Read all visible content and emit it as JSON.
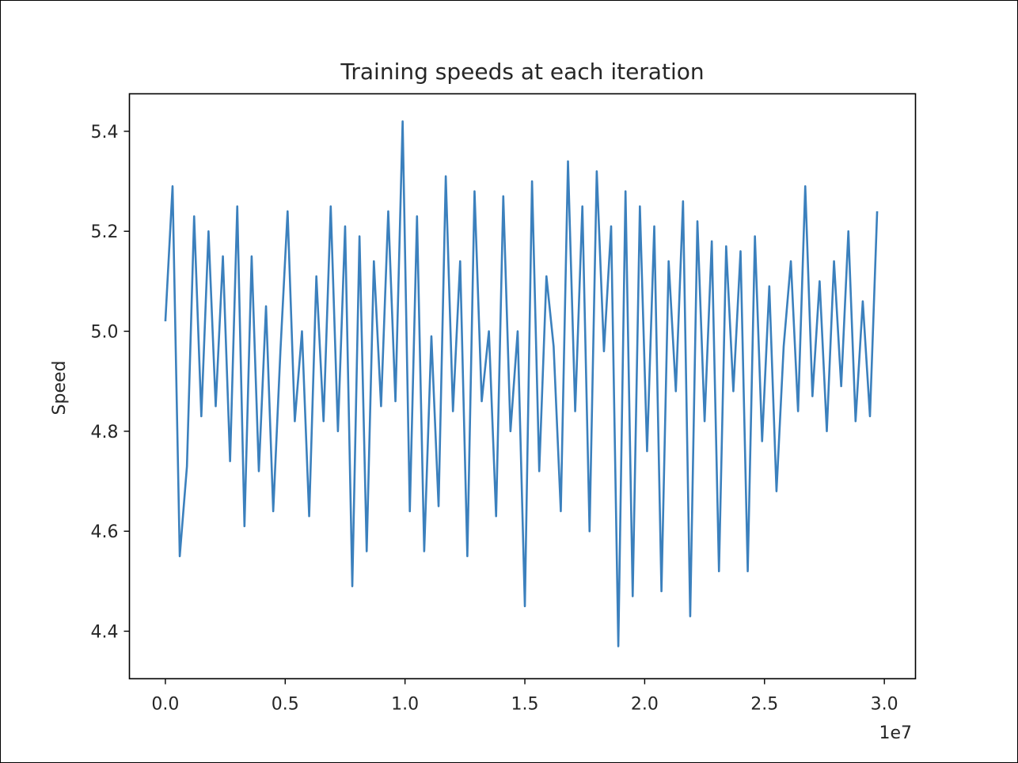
{
  "chart_data": {
    "type": "line",
    "title": "Training speeds at each iteration",
    "xlabel": "",
    "ylabel": "Speed",
    "x_offset_label": "1e7",
    "xlim": [
      -0.15,
      3.13
    ],
    "ylim": [
      4.305,
      5.475
    ],
    "x_ticks": [
      {
        "value": 0.0,
        "label": "0.0"
      },
      {
        "value": 0.5,
        "label": "0.5"
      },
      {
        "value": 1.0,
        "label": "1.0"
      },
      {
        "value": 1.5,
        "label": "1.5"
      },
      {
        "value": 2.0,
        "label": "2.0"
      },
      {
        "value": 2.5,
        "label": "2.5"
      },
      {
        "value": 3.0,
        "label": "3.0"
      }
    ],
    "y_ticks": [
      {
        "value": 4.4,
        "label": "4.4"
      },
      {
        "value": 4.6,
        "label": "4.6"
      },
      {
        "value": 4.8,
        "label": "4.8"
      },
      {
        "value": 5.0,
        "label": "5.0"
      },
      {
        "value": 5.2,
        "label": "5.2"
      },
      {
        "value": 5.4,
        "label": "5.4"
      }
    ],
    "grid": false,
    "legend": "none",
    "series": [
      {
        "color": "#3b80bd",
        "x": [
          0.0,
          0.03,
          0.06,
          0.09,
          0.12,
          0.15,
          0.18,
          0.21,
          0.24,
          0.27,
          0.3,
          0.33,
          0.36,
          0.39,
          0.42,
          0.45,
          0.48,
          0.51,
          0.54,
          0.57,
          0.6,
          0.63,
          0.66,
          0.69,
          0.72,
          0.75,
          0.78,
          0.81,
          0.84,
          0.87,
          0.9,
          0.93,
          0.96,
          0.99,
          1.02,
          1.05,
          1.08,
          1.11,
          1.14,
          1.17,
          1.2,
          1.23,
          1.26,
          1.29,
          1.32,
          1.35,
          1.38,
          1.41,
          1.44,
          1.47,
          1.5,
          1.53,
          1.56,
          1.59,
          1.62,
          1.65,
          1.68,
          1.71,
          1.74,
          1.77,
          1.8,
          1.83,
          1.86,
          1.89,
          1.92,
          1.95,
          1.98,
          2.01,
          2.04,
          2.07,
          2.1,
          2.13,
          2.16,
          2.19,
          2.22,
          2.25,
          2.28,
          2.31,
          2.34,
          2.37,
          2.4,
          2.43,
          2.46,
          2.49,
          2.52,
          2.55,
          2.58,
          2.61,
          2.64,
          2.67,
          2.7,
          2.73,
          2.76,
          2.79,
          2.82,
          2.85,
          2.88,
          2.91,
          2.94,
          2.97
        ],
        "y": [
          5.02,
          5.29,
          4.55,
          4.73,
          5.23,
          4.83,
          5.2,
          4.85,
          5.15,
          4.74,
          5.25,
          4.61,
          5.15,
          4.72,
          5.05,
          4.64,
          4.96,
          5.24,
          4.82,
          5.0,
          4.63,
          5.11,
          4.82,
          5.25,
          4.8,
          5.21,
          4.49,
          5.19,
          4.56,
          5.14,
          4.85,
          5.24,
          4.86,
          5.42,
          4.64,
          5.23,
          4.56,
          4.99,
          4.65,
          5.31,
          4.84,
          5.14,
          4.55,
          5.28,
          4.86,
          5.0,
          4.63,
          5.27,
          4.8,
          5.0,
          4.45,
          5.3,
          4.72,
          5.11,
          4.97,
          4.64,
          5.34,
          4.84,
          5.25,
          4.6,
          5.32,
          4.96,
          5.21,
          4.37,
          5.28,
          4.47,
          5.25,
          4.76,
          5.21,
          4.48,
          5.14,
          4.88,
          5.26,
          4.43,
          5.22,
          4.82,
          5.18,
          4.52,
          5.17,
          4.88,
          5.16,
          4.52,
          5.19,
          4.78,
          5.09,
          4.68,
          4.97,
          5.14,
          4.84,
          5.29,
          4.87,
          5.1,
          4.8,
          5.14,
          4.89,
          5.2,
          4.82,
          5.06,
          4.83,
          5.24
        ]
      }
    ]
  }
}
